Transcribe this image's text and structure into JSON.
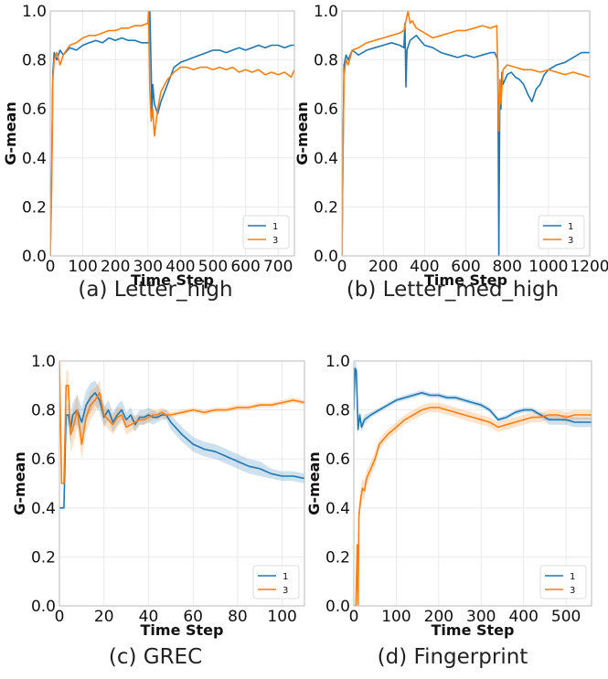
{
  "colors": {
    "series_1": "#1f77b4",
    "series_3": "#ff7f0e",
    "grid": "#e6e6e6",
    "axis": "#bbbbbb"
  },
  "chart_data": [
    {
      "type": "line",
      "caption": "(a) Letter_high",
      "xlabel": "Time Step",
      "ylabel": "G-mean",
      "xlim": [
        0,
        750
      ],
      "ylim": [
        0.0,
        1.0
      ],
      "xticks": [
        0,
        100,
        200,
        300,
        400,
        500,
        600,
        700
      ],
      "yticks": [
        0.0,
        0.2,
        0.4,
        0.6,
        0.8,
        1.0
      ],
      "grid": true,
      "legend": "bottom-right",
      "band": false,
      "series": [
        {
          "name": "1",
          "color": "#1f77b4",
          "x": [
            0,
            4,
            8,
            12,
            20,
            30,
            40,
            60,
            80,
            100,
            120,
            140,
            160,
            180,
            200,
            220,
            240,
            260,
            280,
            300,
            304,
            306,
            310,
            312,
            315,
            320,
            330,
            340,
            360,
            380,
            400,
            420,
            440,
            460,
            480,
            500,
            520,
            540,
            560,
            580,
            600,
            620,
            640,
            660,
            680,
            700,
            720,
            740,
            750
          ],
          "y": [
            0.0,
            0.3,
            0.75,
            0.83,
            0.8,
            0.84,
            0.82,
            0.85,
            0.84,
            0.86,
            0.87,
            0.88,
            0.87,
            0.89,
            0.88,
            0.89,
            0.88,
            0.88,
            0.87,
            0.87,
            0.87,
            1.0,
            0.75,
            0.58,
            0.7,
            0.62,
            0.58,
            0.63,
            0.7,
            0.77,
            0.79,
            0.8,
            0.81,
            0.82,
            0.83,
            0.84,
            0.84,
            0.83,
            0.84,
            0.85,
            0.84,
            0.85,
            0.86,
            0.85,
            0.86,
            0.86,
            0.85,
            0.86,
            0.86
          ]
        },
        {
          "name": "3",
          "color": "#ff7f0e",
          "x": [
            0,
            4,
            8,
            12,
            20,
            30,
            40,
            60,
            80,
            100,
            120,
            140,
            160,
            180,
            200,
            220,
            240,
            260,
            280,
            300,
            302,
            306,
            310,
            315,
            320,
            330,
            340,
            360,
            380,
            400,
            420,
            440,
            460,
            480,
            500,
            520,
            540,
            560,
            580,
            600,
            620,
            640,
            660,
            680,
            700,
            720,
            740,
            750
          ],
          "y": [
            0.0,
            0.25,
            0.72,
            0.8,
            0.83,
            0.78,
            0.82,
            0.86,
            0.87,
            0.89,
            0.9,
            0.9,
            0.91,
            0.92,
            0.92,
            0.93,
            0.93,
            0.94,
            0.94,
            0.95,
            1.0,
            0.67,
            0.55,
            0.6,
            0.49,
            0.6,
            0.67,
            0.72,
            0.75,
            0.77,
            0.77,
            0.76,
            0.77,
            0.77,
            0.76,
            0.77,
            0.76,
            0.77,
            0.75,
            0.76,
            0.75,
            0.76,
            0.74,
            0.75,
            0.74,
            0.75,
            0.73,
            0.76
          ]
        }
      ]
    },
    {
      "type": "line",
      "caption": "(b) Letter_med_high",
      "xlabel": "Time Step",
      "ylabel": "G-mean",
      "xlim": [
        0,
        1200
      ],
      "ylim": [
        0.0,
        1.0
      ],
      "xticks": [
        0,
        200,
        400,
        600,
        800,
        1000,
        1200
      ],
      "yticks": [
        0.0,
        0.2,
        0.4,
        0.6,
        0.8,
        1.0
      ],
      "grid": true,
      "legend": "bottom-right",
      "band": false,
      "series": [
        {
          "name": "1",
          "color": "#1f77b4",
          "x": [
            0,
            5,
            10,
            20,
            30,
            50,
            80,
            120,
            160,
            200,
            240,
            280,
            300,
            305,
            310,
            315,
            330,
            360,
            400,
            440,
            480,
            520,
            560,
            600,
            640,
            680,
            720,
            740,
            755,
            760,
            765,
            770,
            775,
            780,
            800,
            820,
            840,
            860,
            880,
            900,
            920,
            940,
            960,
            980,
            1000,
            1040,
            1080,
            1120,
            1160,
            1200
          ],
          "y": [
            0.0,
            0.4,
            0.78,
            0.82,
            0.8,
            0.84,
            0.82,
            0.84,
            0.85,
            0.86,
            0.87,
            0.86,
            0.85,
            0.95,
            0.69,
            0.84,
            0.88,
            0.9,
            0.86,
            0.85,
            0.83,
            0.82,
            0.81,
            0.82,
            0.81,
            0.82,
            0.83,
            0.83,
            0.8,
            0.0,
            0.72,
            0.6,
            0.75,
            0.7,
            0.74,
            0.75,
            0.73,
            0.72,
            0.7,
            0.66,
            0.63,
            0.68,
            0.7,
            0.74,
            0.76,
            0.78,
            0.79,
            0.81,
            0.83,
            0.83
          ]
        },
        {
          "name": "3",
          "color": "#ff7f0e",
          "x": [
            0,
            5,
            10,
            20,
            30,
            50,
            80,
            120,
            160,
            200,
            240,
            280,
            300,
            320,
            330,
            340,
            360,
            400,
            440,
            480,
            520,
            560,
            600,
            640,
            680,
            720,
            750,
            760,
            765,
            770,
            780,
            800,
            840,
            880,
            920,
            960,
            1000,
            1040,
            1080,
            1120,
            1160,
            1200
          ],
          "y": [
            0.0,
            0.4,
            0.74,
            0.8,
            0.78,
            0.84,
            0.85,
            0.87,
            0.88,
            0.89,
            0.9,
            0.91,
            0.92,
            1.0,
            0.95,
            0.96,
            0.93,
            0.91,
            0.89,
            0.9,
            0.91,
            0.92,
            0.92,
            0.93,
            0.94,
            0.93,
            0.94,
            0.51,
            0.72,
            0.62,
            0.76,
            0.78,
            0.77,
            0.76,
            0.76,
            0.75,
            0.76,
            0.75,
            0.74,
            0.75,
            0.74,
            0.73
          ]
        }
      ]
    },
    {
      "type": "line",
      "caption": "(c) GREC",
      "xlabel": "Time Step",
      "ylabel": "G-mean",
      "xlim": [
        0,
        110
      ],
      "ylim": [
        0.0,
        1.0
      ],
      "xticks": [
        0,
        20,
        40,
        60,
        80,
        100
      ],
      "yticks": [
        0.0,
        0.2,
        0.4,
        0.6,
        0.8,
        1.0
      ],
      "grid": true,
      "legend": "bottom-right",
      "band": true,
      "series": [
        {
          "name": "1",
          "color": "#1f77b4",
          "x": [
            0,
            1,
            2,
            3,
            4,
            5,
            6,
            8,
            10,
            12,
            14,
            16,
            18,
            20,
            22,
            24,
            26,
            28,
            30,
            32,
            34,
            36,
            38,
            40,
            42,
            44,
            46,
            48,
            50,
            55,
            60,
            65,
            70,
            75,
            80,
            85,
            90,
            95,
            100,
            105,
            110
          ],
          "y": [
            0.4,
            0.4,
            0.4,
            0.78,
            0.78,
            0.72,
            0.78,
            0.8,
            0.75,
            0.82,
            0.85,
            0.87,
            0.84,
            0.77,
            0.8,
            0.75,
            0.78,
            0.8,
            0.76,
            0.78,
            0.74,
            0.77,
            0.77,
            0.78,
            0.77,
            0.77,
            0.78,
            0.78,
            0.75,
            0.7,
            0.66,
            0.64,
            0.63,
            0.61,
            0.59,
            0.57,
            0.56,
            0.54,
            0.53,
            0.53,
            0.52
          ],
          "spread": [
            0.0,
            0.0,
            0.0,
            0.04,
            0.05,
            0.06,
            0.05,
            0.06,
            0.06,
            0.06,
            0.06,
            0.05,
            0.05,
            0.04,
            0.04,
            0.04,
            0.04,
            0.04,
            0.03,
            0.03,
            0.03,
            0.03,
            0.03,
            0.03,
            0.03,
            0.02,
            0.02,
            0.02,
            0.03,
            0.03,
            0.03,
            0.03,
            0.03,
            0.03,
            0.03,
            0.03,
            0.03,
            0.02,
            0.02,
            0.02,
            0.02
          ]
        },
        {
          "name": "3",
          "color": "#ff7f0e",
          "x": [
            0,
            1,
            2,
            3,
            4,
            5,
            6,
            8,
            10,
            12,
            14,
            16,
            18,
            20,
            22,
            24,
            26,
            28,
            30,
            32,
            34,
            36,
            38,
            40,
            42,
            44,
            46,
            48,
            50,
            55,
            60,
            65,
            70,
            75,
            80,
            85,
            90,
            95,
            100,
            105,
            110
          ],
          "y": [
            1.0,
            0.5,
            0.5,
            0.9,
            0.9,
            0.7,
            0.72,
            0.8,
            0.66,
            0.77,
            0.82,
            0.84,
            0.87,
            0.78,
            0.76,
            0.74,
            0.77,
            0.78,
            0.73,
            0.74,
            0.75,
            0.76,
            0.76,
            0.77,
            0.78,
            0.78,
            0.79,
            0.78,
            0.78,
            0.79,
            0.8,
            0.79,
            0.8,
            0.8,
            0.81,
            0.81,
            0.82,
            0.82,
            0.83,
            0.84,
            0.83
          ],
          "spread": [
            0.0,
            0.0,
            0.0,
            0.06,
            0.06,
            0.07,
            0.07,
            0.07,
            0.06,
            0.06,
            0.06,
            0.05,
            0.05,
            0.04,
            0.04,
            0.04,
            0.04,
            0.03,
            0.03,
            0.03,
            0.03,
            0.02,
            0.02,
            0.02,
            0.02,
            0.02,
            0.02,
            0.02,
            0.01,
            0.01,
            0.01,
            0.01,
            0.01,
            0.01,
            0.01,
            0.01,
            0.01,
            0.01,
            0.01,
            0.01,
            0.01
          ]
        }
      ]
    },
    {
      "type": "line",
      "caption": "(d) Fingerprint",
      "xlabel": "Time Step",
      "ylabel": "G-mean",
      "xlim": [
        0,
        560
      ],
      "ylim": [
        0.0,
        1.0
      ],
      "xticks": [
        0,
        100,
        200,
        300,
        400,
        500
      ],
      "yticks": [
        0.0,
        0.2,
        0.4,
        0.6,
        0.8,
        1.0
      ],
      "grid": true,
      "legend": "bottom-right",
      "band": true,
      "series": [
        {
          "name": "1",
          "color": "#1f77b4",
          "x": [
            0,
            3,
            6,
            10,
            14,
            18,
            25,
            40,
            60,
            80,
            100,
            120,
            140,
            160,
            180,
            200,
            220,
            240,
            260,
            280,
            300,
            320,
            340,
            360,
            380,
            400,
            420,
            440,
            460,
            480,
            500,
            520,
            540,
            560
          ],
          "y": [
            0.8,
            0.97,
            0.96,
            0.72,
            0.78,
            0.73,
            0.76,
            0.78,
            0.8,
            0.82,
            0.84,
            0.85,
            0.86,
            0.87,
            0.86,
            0.86,
            0.85,
            0.85,
            0.84,
            0.83,
            0.82,
            0.8,
            0.76,
            0.77,
            0.79,
            0.8,
            0.8,
            0.78,
            0.76,
            0.76,
            0.76,
            0.75,
            0.75,
            0.75
          ],
          "spread": [
            0.02,
            0.03,
            0.03,
            0.02,
            0.02,
            0.02,
            0.02,
            0.01,
            0.01,
            0.01,
            0.01,
            0.01,
            0.01,
            0.01,
            0.01,
            0.01,
            0.01,
            0.01,
            0.01,
            0.01,
            0.01,
            0.01,
            0.01,
            0.01,
            0.01,
            0.01,
            0.01,
            0.01,
            0.02,
            0.02,
            0.02,
            0.02,
            0.02,
            0.02
          ]
        },
        {
          "name": "3",
          "color": "#ff7f0e",
          "x": [
            0,
            5,
            8,
            10,
            12,
            15,
            20,
            25,
            30,
            40,
            50,
            60,
            80,
            100,
            120,
            140,
            160,
            180,
            200,
            220,
            240,
            260,
            280,
            300,
            320,
            340,
            360,
            380,
            400,
            420,
            440,
            460,
            480,
            500,
            520,
            540,
            560
          ],
          "y": [
            0.0,
            0.0,
            0.25,
            0.0,
            0.37,
            0.42,
            0.48,
            0.47,
            0.52,
            0.56,
            0.6,
            0.66,
            0.7,
            0.73,
            0.76,
            0.78,
            0.8,
            0.81,
            0.81,
            0.8,
            0.79,
            0.78,
            0.77,
            0.76,
            0.75,
            0.73,
            0.74,
            0.75,
            0.76,
            0.77,
            0.77,
            0.78,
            0.78,
            0.77,
            0.78,
            0.78,
            0.78
          ],
          "spread": [
            0.0,
            0.0,
            0.0,
            0.0,
            0.04,
            0.04,
            0.04,
            0.04,
            0.03,
            0.03,
            0.03,
            0.02,
            0.02,
            0.02,
            0.02,
            0.02,
            0.02,
            0.02,
            0.02,
            0.02,
            0.02,
            0.02,
            0.02,
            0.02,
            0.02,
            0.02,
            0.02,
            0.02,
            0.02,
            0.02,
            0.02,
            0.02,
            0.02,
            0.02,
            0.02,
            0.02,
            0.02
          ]
        }
      ]
    }
  ]
}
